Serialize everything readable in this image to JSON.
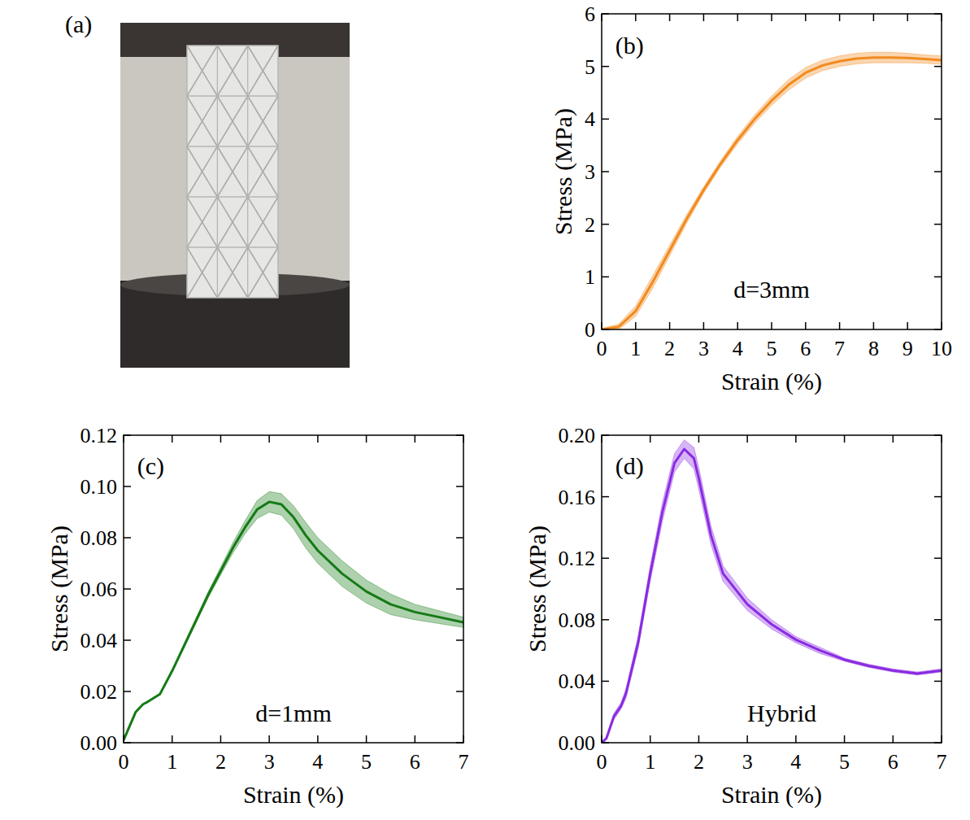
{
  "photo": {
    "label": "(a)"
  },
  "chart_data": [
    {
      "type": "line",
      "title": "(b)",
      "annotations": [
        "d=3mm"
      ],
      "x_label": "Strain (%)",
      "y_label": "Stress (MPa)",
      "xlim": [
        0,
        10
      ],
      "ylim": [
        0,
        6
      ],
      "xticks": [
        0,
        1,
        2,
        3,
        4,
        5,
        6,
        7,
        8,
        9,
        10
      ],
      "yticks": [
        0,
        1,
        2,
        3,
        4,
        5,
        6
      ],
      "x": [
        0,
        0.5,
        1,
        1.5,
        2,
        2.5,
        3,
        3.5,
        4,
        4.5,
        5,
        5.5,
        6,
        6.5,
        7,
        7.5,
        8,
        8.5,
        9,
        9.5,
        10
      ],
      "series": [
        {
          "color": "#f28a1e",
          "values": [
            0,
            0.05,
            0.35,
            0.9,
            1.5,
            2.1,
            2.65,
            3.15,
            3.6,
            4.0,
            4.35,
            4.65,
            4.88,
            5.02,
            5.1,
            5.15,
            5.17,
            5.17,
            5.16,
            5.14,
            5.12
          ],
          "error": [
            0.02,
            0.05,
            0.1,
            0.12,
            0.1,
            0.08,
            0.06,
            0.06,
            0.07,
            0.08,
            0.09,
            0.1,
            0.1,
            0.1,
            0.1,
            0.1,
            0.1,
            0.1,
            0.09,
            0.08,
            0.08
          ]
        }
      ]
    },
    {
      "type": "line",
      "title": "(c)",
      "annotations": [
        "d=1mm"
      ],
      "x_label": "Strain (%)",
      "y_label": "Stress (MPa)",
      "xlim": [
        0,
        7
      ],
      "ylim": [
        0,
        0.12
      ],
      "xticks": [
        0,
        1,
        2,
        3,
        4,
        5,
        6,
        7
      ],
      "yticks": [
        {
          "value": 0,
          "label": "0.00"
        },
        {
          "value": 0.02,
          "label": "0.02"
        },
        {
          "value": 0.04,
          "label": "0.04"
        },
        {
          "value": 0.06,
          "label": "0.06"
        },
        {
          "value": 0.08,
          "label": "0.08"
        },
        {
          "value": 0.1,
          "label": "0.10"
        },
        {
          "value": 0.12,
          "label": "0.12"
        }
      ],
      "x": [
        0,
        0.25,
        0.4,
        0.5,
        0.75,
        1,
        1.25,
        1.5,
        1.75,
        2,
        2.25,
        2.5,
        2.75,
        3,
        3.25,
        3.5,
        3.75,
        4,
        4.5,
        5,
        5.5,
        6,
        6.5,
        7
      ],
      "series": [
        {
          "color": "#157a15",
          "values": [
            0.001,
            0.012,
            0.015,
            0.016,
            0.019,
            0.028,
            0.038,
            0.048,
            0.058,
            0.067,
            0.076,
            0.084,
            0.091,
            0.094,
            0.093,
            0.088,
            0.081,
            0.075,
            0.066,
            0.059,
            0.054,
            0.051,
            0.049,
            0.047
          ],
          "error": [
            0,
            0,
            0,
            0,
            0,
            0.0005,
            0.0008,
            0.001,
            0.0012,
            0.0015,
            0.002,
            0.0025,
            0.0035,
            0.004,
            0.0042,
            0.0045,
            0.005,
            0.005,
            0.005,
            0.0045,
            0.004,
            0.003,
            0.0025,
            0.002
          ]
        }
      ]
    },
    {
      "type": "line",
      "title": "(d)",
      "annotations": [
        "Hybrid"
      ],
      "x_label": "Strain (%)",
      "y_label": "Stress (MPa)",
      "xlim": [
        0,
        7
      ],
      "ylim": [
        0,
        0.2
      ],
      "xticks": [
        0,
        1,
        2,
        3,
        4,
        5,
        6,
        7
      ],
      "yticks": [
        {
          "value": 0,
          "label": "0.00"
        },
        {
          "value": 0.04,
          "label": "0.04"
        },
        {
          "value": 0.08,
          "label": "0.08"
        },
        {
          "value": 0.12,
          "label": "0.12"
        },
        {
          "value": 0.16,
          "label": "0.16"
        },
        {
          "value": 0.2,
          "label": "0.20"
        }
      ],
      "x": [
        0,
        0.1,
        0.25,
        0.4,
        0.5,
        0.75,
        1,
        1.25,
        1.5,
        1.7,
        1.9,
        2,
        2.25,
        2.5,
        3,
        3.5,
        4,
        4.5,
        5,
        5.5,
        6,
        6.5,
        7
      ],
      "series": [
        {
          "color": "#8a2be2",
          "values": [
            0,
            0.003,
            0.017,
            0.024,
            0.032,
            0.065,
            0.11,
            0.15,
            0.182,
            0.191,
            0.185,
            0.172,
            0.135,
            0.11,
            0.09,
            0.077,
            0.067,
            0.06,
            0.054,
            0.05,
            0.047,
            0.045,
            0.047
          ],
          "error": [
            0,
            0.001,
            0.002,
            0.002,
            0.003,
            0.004,
            0.005,
            0.006,
            0.006,
            0.006,
            0.007,
            0.007,
            0.006,
            0.005,
            0.004,
            0.003,
            0.002,
            0.002,
            0.001,
            0.001,
            0.001,
            0.001,
            0.001
          ]
        }
      ]
    }
  ]
}
